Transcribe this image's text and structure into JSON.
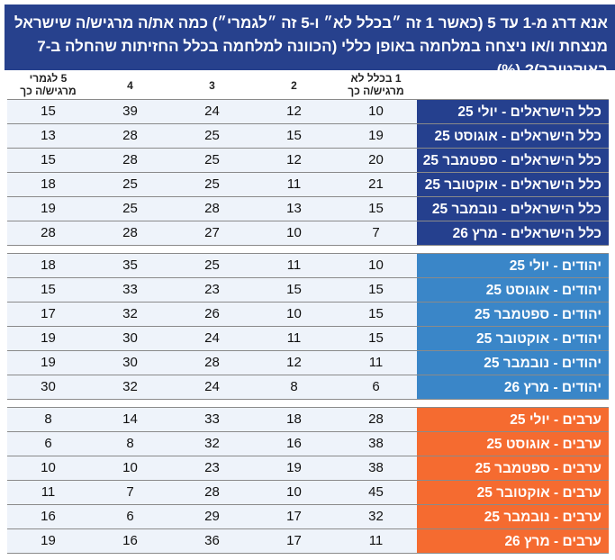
{
  "title": "אנא דרג מ-1 עד 5 (כאשר 1 זה ״בכלל לא״ ו-5 זה ״לגמרי״) כמה את/ה מרגיש/ה שישראל מנצחת ו/או ניצחה במלחמה באופן כללי (הכוונה למלחמה בכלל החזיתות שהחלה ב-7 באוקטובר)? (%)",
  "columns": [
    {
      "line1": "1 בכלל לא",
      "line2": "מרגיש/ה כך"
    },
    {
      "line1": "2",
      "line2": ""
    },
    {
      "line1": "3",
      "line2": ""
    },
    {
      "line1": "4",
      "line2": ""
    },
    {
      "line1": "5 לגמרי",
      "line2": "מרגיש/ה כך"
    }
  ],
  "colors": {
    "all": "#25408e",
    "jews": "#3a86c8",
    "arabs": "#f56b30"
  },
  "groups": [
    {
      "key": "all",
      "rows": [
        {
          "label": "כלל הישראלים - יולי 25",
          "values": [
            10,
            12,
            24,
            39,
            15
          ]
        },
        {
          "label": "כלל הישראלים - אוגוסט 25",
          "values": [
            19,
            15,
            25,
            28,
            13
          ]
        },
        {
          "label": "כלל הישראלים - ספטמבר 25",
          "values": [
            20,
            12,
            25,
            28,
            15
          ]
        },
        {
          "label": "כלל הישראלים - אוקטובר 25",
          "values": [
            21,
            11,
            25,
            25,
            18
          ]
        },
        {
          "label": "כלל הישראלים - נובמבר 25",
          "values": [
            15,
            13,
            28,
            25,
            19
          ]
        },
        {
          "label": "כלל הישראלים - מרץ 26",
          "values": [
            7,
            10,
            27,
            28,
            28
          ]
        }
      ]
    },
    {
      "key": "jews",
      "rows": [
        {
          "label": "יהודים - יולי 25",
          "values": [
            10,
            11,
            25,
            35,
            18
          ]
        },
        {
          "label": "יהודים - אוגוסט 25",
          "values": [
            15,
            15,
            23,
            33,
            15
          ]
        },
        {
          "label": "יהודים - ספטמבר 25",
          "values": [
            15,
            10,
            26,
            32,
            17
          ]
        },
        {
          "label": "יהודים - אוקטובר 25",
          "values": [
            15,
            11,
            24,
            30,
            19
          ]
        },
        {
          "label": "יהודים - נובמבר 25",
          "values": [
            11,
            12,
            28,
            30,
            19
          ]
        },
        {
          "label": "יהודים - מרץ 26",
          "values": [
            6,
            8,
            24,
            32,
            30
          ]
        }
      ]
    },
    {
      "key": "arabs",
      "rows": [
        {
          "label": "ערבים - יולי 25",
          "values": [
            28,
            18,
            33,
            14,
            8
          ]
        },
        {
          "label": "ערבים - אוגוסט 25",
          "values": [
            38,
            16,
            32,
            8,
            6
          ]
        },
        {
          "label": "ערבים - ספטמבר 25",
          "values": [
            38,
            19,
            23,
            10,
            10
          ]
        },
        {
          "label": "ערבים - אוקטובר 25",
          "values": [
            45,
            10,
            28,
            7,
            11
          ]
        },
        {
          "label": "ערבים - נובמבר 25",
          "values": [
            32,
            17,
            29,
            6,
            16
          ]
        },
        {
          "label": "ערבים - מרץ 26",
          "values": [
            11,
            17,
            36,
            16,
            19
          ]
        }
      ]
    }
  ]
}
